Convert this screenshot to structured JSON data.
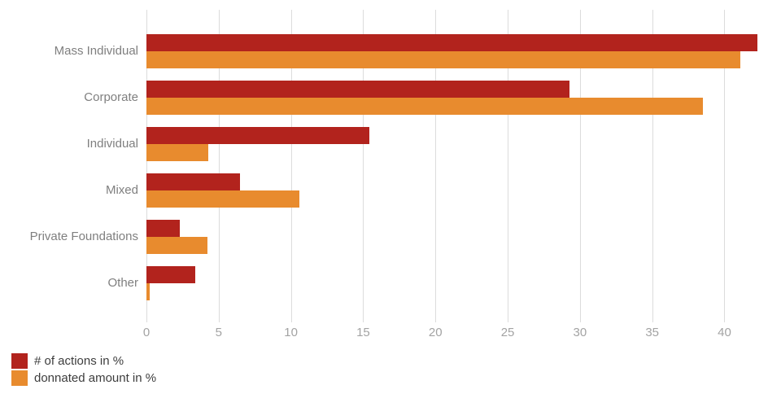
{
  "chart_data": {
    "type": "bar",
    "orientation": "horizontal",
    "title": "",
    "categories": [
      "Mass Individual",
      "Corporate",
      "Individual",
      "Mixed",
      "Private Foundations",
      "Other"
    ],
    "series": [
      {
        "name": "# of actions in %",
        "color": "#b2231d",
        "values": [
          42.3,
          29.3,
          15.4,
          6.5,
          2.3,
          3.4
        ]
      },
      {
        "name": "donnated amount in %",
        "color": "#e88b2e",
        "values": [
          41.1,
          38.5,
          4.3,
          10.6,
          4.2,
          0.2
        ]
      }
    ],
    "xlim": [
      0,
      42.9
    ],
    "xticks": [
      0,
      5,
      10,
      15,
      20,
      25,
      30,
      35,
      40
    ],
    "grid": true,
    "legend_position": "bottom-left",
    "colors": {
      "gridline": "#dcdcdc",
      "tick_text": "#a3a3a3",
      "category_text": "#7f7f7f",
      "legend_text": "#3d3d3d",
      "background": "#ffffff"
    }
  }
}
